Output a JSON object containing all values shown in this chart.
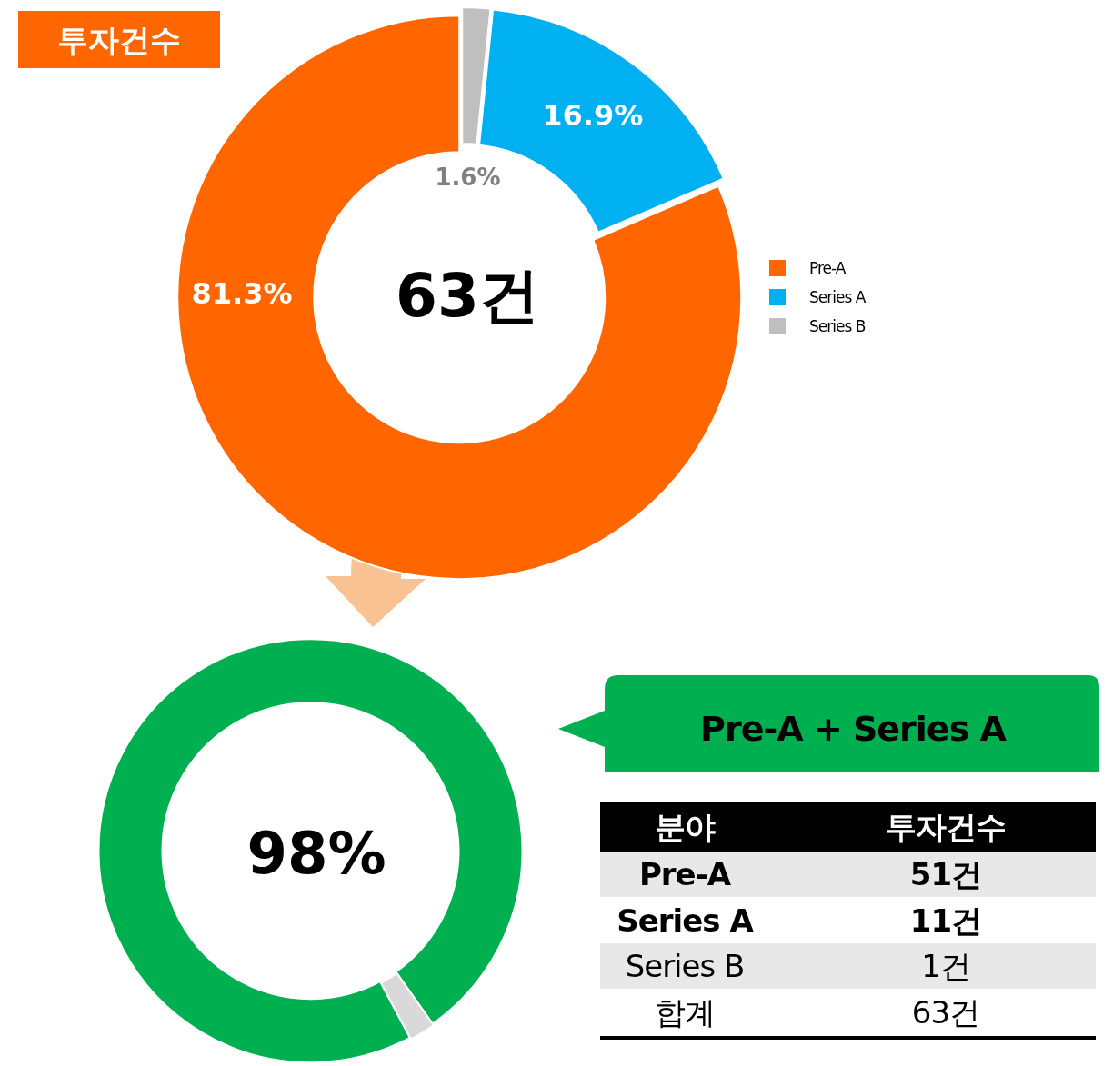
{
  "chart_data": [
    {
      "type": "donut",
      "title": "투자건수",
      "categories": [
        "Pre-A",
        "Series A",
        "Series B"
      ],
      "values": [
        81.3,
        16.9,
        1.6
      ],
      "value_labels": [
        "81.3%",
        "16.9%",
        "1.6%"
      ],
      "colors": [
        "#ff6600",
        "#00b0f0",
        "#bfbfbf"
      ],
      "legend": "right",
      "annotations": [
        "63건"
      ]
    },
    {
      "type": "donut",
      "categories": [
        null,
        null
      ],
      "values": [
        98,
        2
      ],
      "colors": [
        "#00b050",
        "#d9d9d9"
      ],
      "annotations": [
        "98%",
        "Pre-A + Series A"
      ]
    },
    {
      "type": "other",
      "annotations": [
        "분야",
        "투자건수",
        "Pre-A",
        "51건",
        "Series A",
        "11건",
        "Series B",
        "1건",
        "합계",
        "63건"
      ]
    }
  ]
}
